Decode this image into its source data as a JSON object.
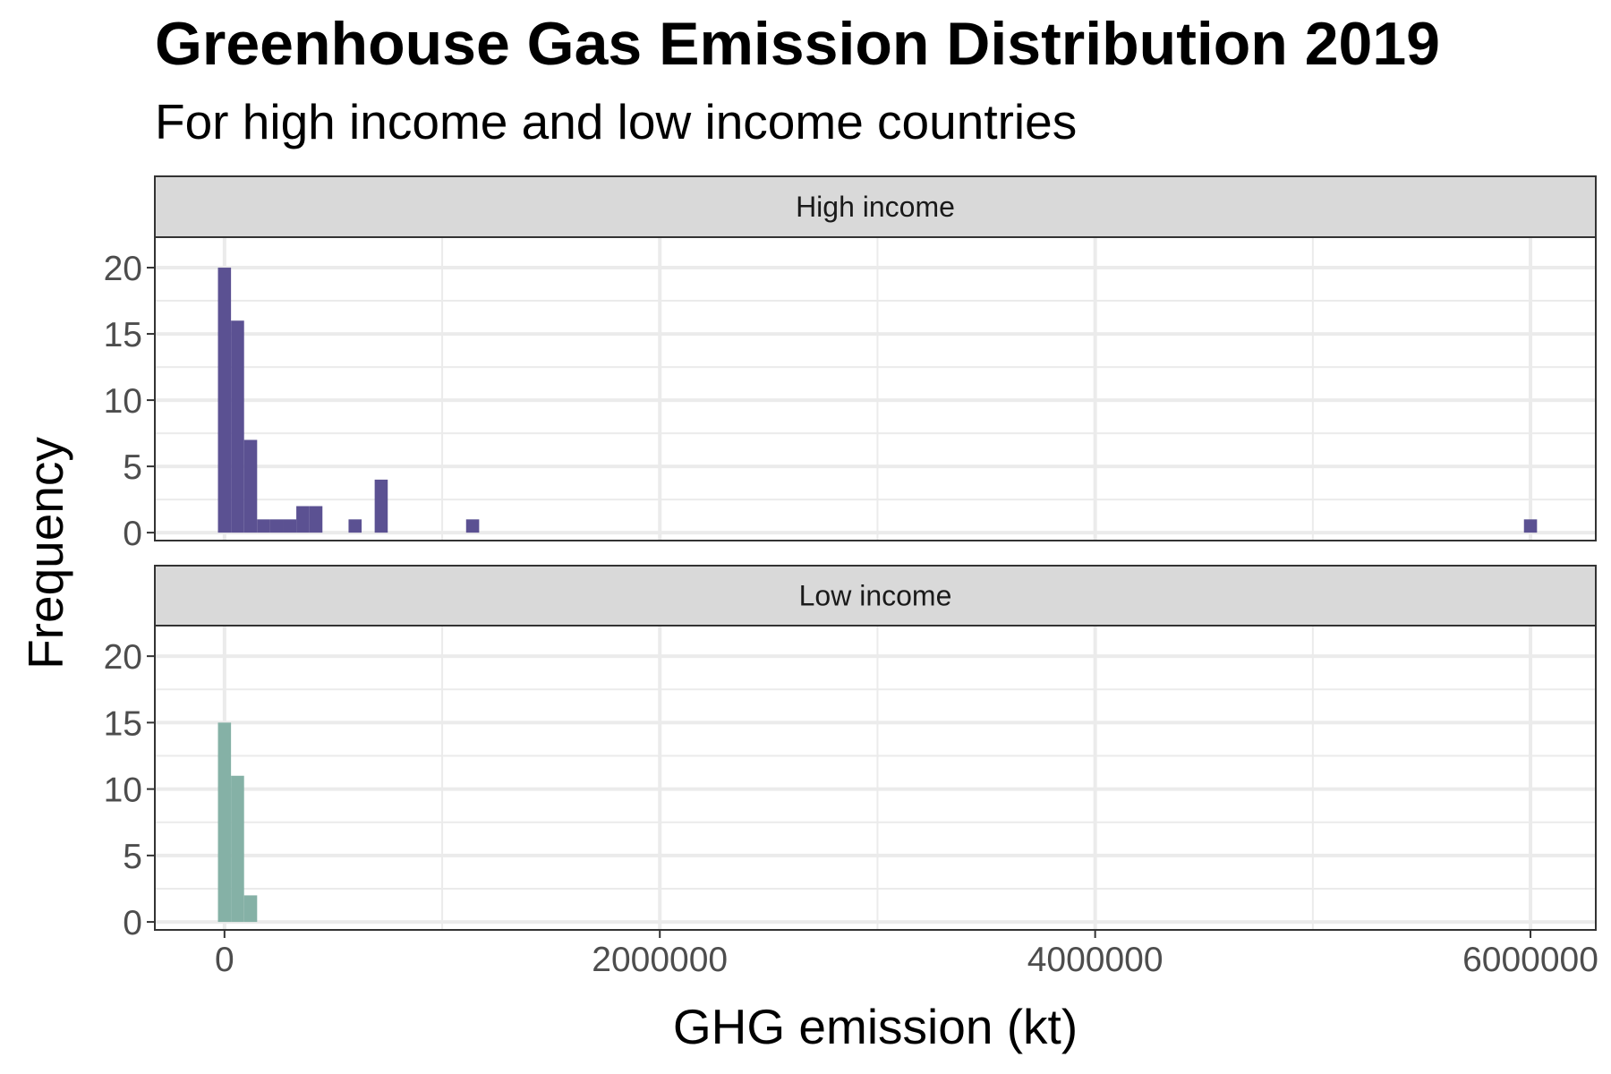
{
  "title": "Greenhouse Gas Emission Distribution 2019",
  "subtitle": "For high income and low income countries",
  "chart_data": {
    "type": "histogram",
    "title": "Greenhouse Gas Emission Distribution 2019",
    "subtitle": "For high income and low income countries",
    "xlabel": "GHG emission (kt)",
    "ylabel": "Frequency",
    "xlim": [
      -320000,
      6300000
    ],
    "ylim": [
      -0.6,
      22.3
    ],
    "x_ticks": [
      0,
      2000000,
      4000000,
      6000000
    ],
    "x_tick_labels": [
      "0",
      "2000000",
      "4000000",
      "6000000"
    ],
    "y_ticks": [
      0,
      5,
      10,
      15,
      20
    ],
    "y_tick_labels": [
      "0",
      "5",
      "10",
      "15",
      "20"
    ],
    "bin_width": 60000,
    "grid": true,
    "panels": [
      {
        "label": "High income",
        "color": "#5b5192",
        "bins": [
          {
            "x": 0,
            "count": 20
          },
          {
            "x": 60000,
            "count": 16
          },
          {
            "x": 120000,
            "count": 7
          },
          {
            "x": 180000,
            "count": 1
          },
          {
            "x": 240000,
            "count": 1
          },
          {
            "x": 300000,
            "count": 1
          },
          {
            "x": 360000,
            "count": 2
          },
          {
            "x": 420000,
            "count": 2
          },
          {
            "x": 600000,
            "count": 1
          },
          {
            "x": 720000,
            "count": 4
          },
          {
            "x": 1140000,
            "count": 1
          },
          {
            "x": 6000000,
            "count": 1
          }
        ]
      },
      {
        "label": "Low income",
        "color": "#85b1a6",
        "bins": [
          {
            "x": 0,
            "count": 15
          },
          {
            "x": 60000,
            "count": 11
          },
          {
            "x": 120000,
            "count": 2
          }
        ]
      }
    ]
  }
}
